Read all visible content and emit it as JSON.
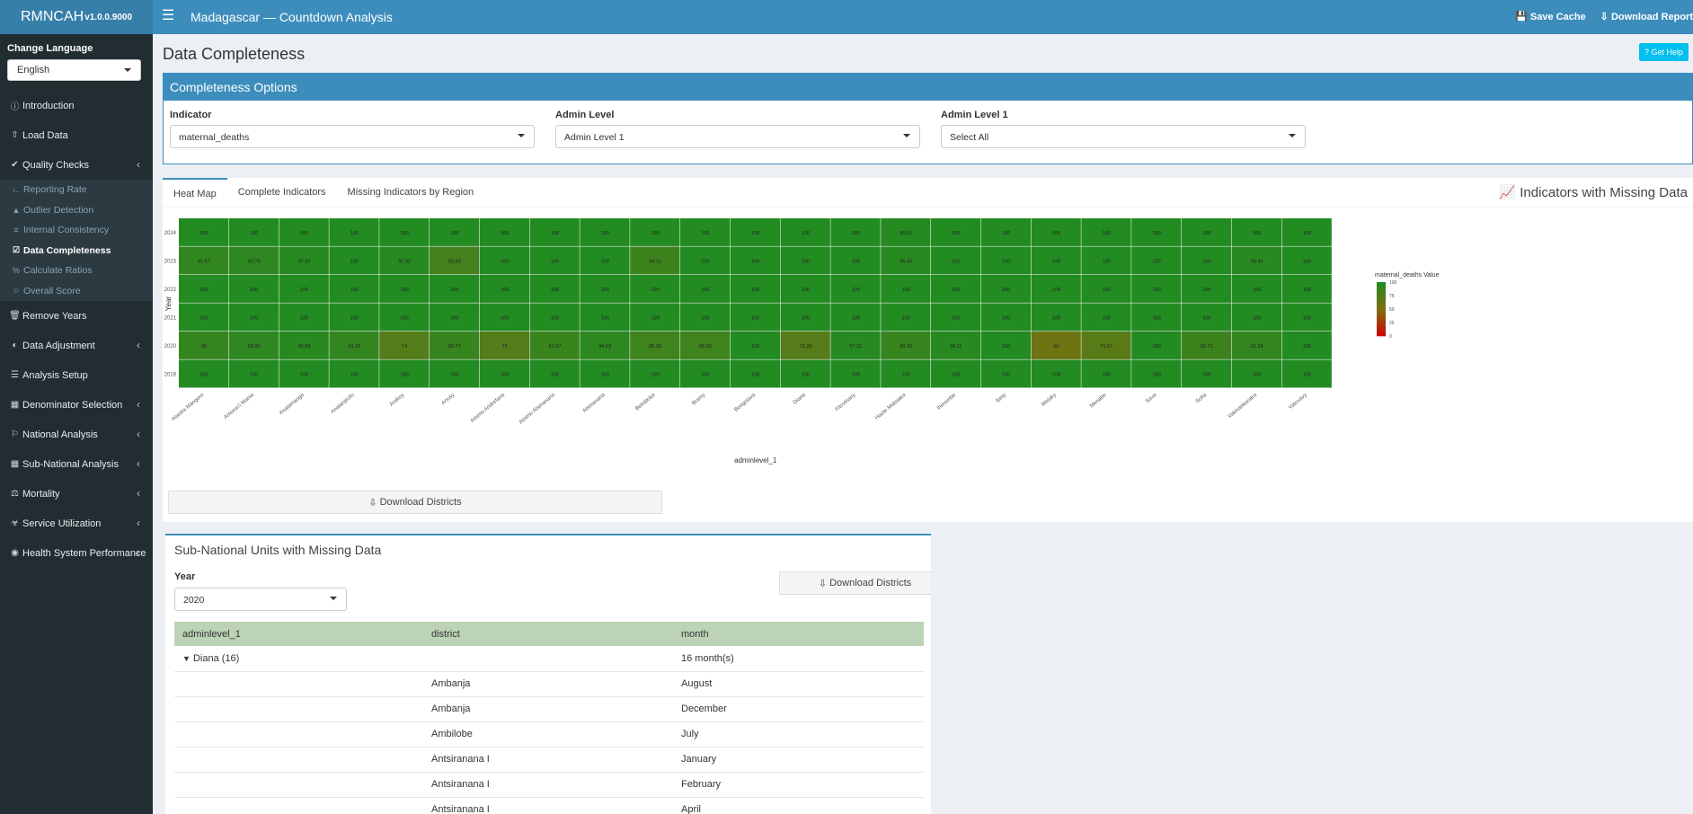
{
  "header": {
    "brand": "RMNCAH",
    "version": "v1.0.0.9000",
    "title": "Madagascar — Countdown Analysis",
    "save_cache": "Save Cache",
    "download_report": "Download Report"
  },
  "sidebar": {
    "language_label": "Change Language",
    "language_value": "English",
    "items": [
      {
        "label": "Introduction",
        "icon": "info-circle-icon"
      },
      {
        "label": "Load Data",
        "icon": "upload-icon"
      },
      {
        "label": "Quality Checks",
        "icon": "check-circle-icon"
      },
      {
        "label": "Remove Years",
        "icon": "trash-icon"
      },
      {
        "label": "Data Adjustment",
        "icon": "adjust-icon"
      },
      {
        "label": "Analysis Setup",
        "icon": "sliders-icon"
      },
      {
        "label": "Denominator Selection",
        "icon": "calculator-icon"
      },
      {
        "label": "National Analysis",
        "icon": "flag-icon"
      },
      {
        "label": "Sub-National Analysis",
        "icon": "map-icon"
      },
      {
        "label": "Mortality",
        "icon": "scale-icon"
      },
      {
        "label": "Service Utilization",
        "icon": "hospital-icon"
      },
      {
        "label": "Health System Performance",
        "icon": "dashboard-icon"
      }
    ],
    "quality_sub": [
      {
        "label": "Reporting Rate",
        "icon": "chart-line-icon"
      },
      {
        "label": "Outlier Detection",
        "icon": "warning-icon"
      },
      {
        "label": "Internal Consistency",
        "icon": "list-icon"
      },
      {
        "label": "Data Completeness",
        "icon": "check-square-icon"
      },
      {
        "label": "Calculate Ratios",
        "icon": "percent-icon"
      },
      {
        "label": "Overall Score",
        "icon": "star-icon"
      }
    ]
  },
  "page": {
    "title": "Data Completeness",
    "help_button": "Get Help"
  },
  "options": {
    "title": "Completeness Options",
    "indicator_label": "Indicator",
    "indicator_value": "maternal_deaths",
    "admin_level_label": "Admin Level",
    "admin_level_value": "Admin Level 1",
    "admin_level1_label": "Admin Level 1",
    "admin_level1_value": "Select All"
  },
  "tabs": {
    "items": [
      "Heat Map",
      "Complete Indicators",
      "Missing Indicators by Region"
    ],
    "right_title": "Indicators with Missing Data",
    "download_button": "Download Districts"
  },
  "chart_data": {
    "type": "heatmap",
    "xlabel": "adminlevel_1",
    "ylabel": "Year",
    "legend_title": "maternal_deaths Value",
    "legend_ticks": [
      100,
      75,
      50,
      25,
      0
    ],
    "x": [
      "Alaotra Mangoro",
      "Amoron'i Mania",
      "Analamanga",
      "Analanjirofo",
      "Androy",
      "Anosy",
      "Atsimo Andrefana",
      "Atsimo Atsinanana",
      "Atsinanana",
      "Betsiboka",
      "Boeny",
      "Bongolava",
      "Diana",
      "Fitovinany",
      "Haute Matsiatra",
      "Ihorombe",
      "Itasy",
      "Melaky",
      "Menabe",
      "Sava",
      "Sofia",
      "Vakinankaratra",
      "Vatovavy"
    ],
    "y": [
      "2024",
      "2023",
      "2022",
      "2021",
      "2020",
      "2019"
    ],
    "values": [
      [
        100,
        100,
        100,
        100,
        100,
        100,
        100,
        100,
        100,
        100,
        100,
        100,
        100,
        100,
        98.61,
        100,
        100,
        100,
        100,
        100,
        100,
        100,
        100
      ],
      [
        91.67,
        93.75,
        97.83,
        100,
        97.92,
        83.33,
        100,
        100,
        100,
        86.11,
        100,
        100,
        100,
        100,
        96.43,
        100,
        100,
        100,
        100,
        100,
        100,
        96.43,
        100
      ],
      [
        100,
        100,
        100,
        100,
        100,
        100,
        100,
        100,
        100,
        100,
        100,
        100,
        100,
        100,
        100,
        100,
        100,
        100,
        100,
        100,
        100,
        100,
        100
      ],
      [
        100,
        100,
        100,
        100,
        100,
        100,
        100,
        100,
        100,
        100,
        100,
        100,
        100,
        100,
        100,
        100,
        100,
        100,
        100,
        100,
        100,
        100,
        100
      ],
      [
        90,
        93.83,
        96.68,
        91.28,
        74,
        89.77,
        75,
        87.67,
        94.03,
        85.36,
        85.36,
        100,
        73.33,
        97.22,
        89.29,
        96.11,
        100,
        60,
        71.67,
        100,
        85.71,
        91.24,
        100
      ],
      [
        100,
        100,
        100,
        100,
        100,
        100,
        100,
        100,
        100,
        100,
        100,
        100,
        100,
        100,
        100,
        100,
        100,
        100,
        100,
        100,
        100,
        100,
        100
      ]
    ]
  },
  "subnational": {
    "title": "Sub-National Units with Missing Data",
    "year_label": "Year",
    "year_value": "2020",
    "download_button": "Download Districts",
    "columns": [
      "adminlevel_1",
      "district",
      "month"
    ],
    "group_label": "Diana (16)",
    "group_count": "16 month(s)",
    "rows": [
      {
        "district": "Ambanja",
        "month": "August"
      },
      {
        "district": "Ambanja",
        "month": "December"
      },
      {
        "district": "Ambilobe",
        "month": "July"
      },
      {
        "district": "Antsiranana I",
        "month": "January"
      },
      {
        "district": "Antsiranana I",
        "month": "February"
      },
      {
        "district": "Antsiranana I",
        "month": "April"
      }
    ]
  },
  "colors": {
    "header": "#3c8dbc",
    "brand_bg": "#367fa9",
    "sidebar": "#222d32",
    "help": "#00c0ef",
    "table_header": "#bcd4b5"
  }
}
